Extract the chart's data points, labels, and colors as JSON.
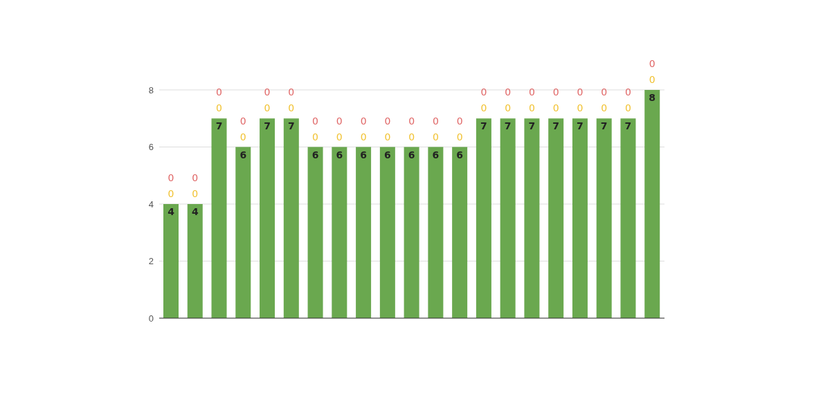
{
  "chart_data": {
    "type": "bar",
    "stacked": true,
    "categories": [
      null,
      null,
      null,
      null,
      null,
      null,
      null,
      null,
      null,
      null,
      null,
      null,
      null,
      null,
      null,
      null,
      null,
      null,
      null,
      null,
      null
    ],
    "series": [
      {
        "color": "#6aa84f",
        "values": [
          4,
          4,
          7,
          6,
          7,
          7,
          6,
          6,
          6,
          6,
          6,
          6,
          6,
          7,
          7,
          7,
          7,
          7,
          7,
          7,
          8
        ]
      },
      {
        "color": "#f1c232",
        "values": [
          0,
          0,
          0,
          0,
          0,
          0,
          0,
          0,
          0,
          0,
          0,
          0,
          0,
          0,
          0,
          0,
          0,
          0,
          0,
          0,
          0
        ]
      },
      {
        "color": "#e06666",
        "values": [
          0,
          0,
          0,
          0,
          0,
          0,
          0,
          0,
          0,
          0,
          0,
          0,
          0,
          0,
          0,
          0,
          0,
          0,
          0,
          0,
          0
        ]
      }
    ],
    "ylim": [
      0,
      8
    ],
    "yticks": [
      0,
      2,
      4,
      6,
      8
    ],
    "grid": "y",
    "data_labels": true
  }
}
